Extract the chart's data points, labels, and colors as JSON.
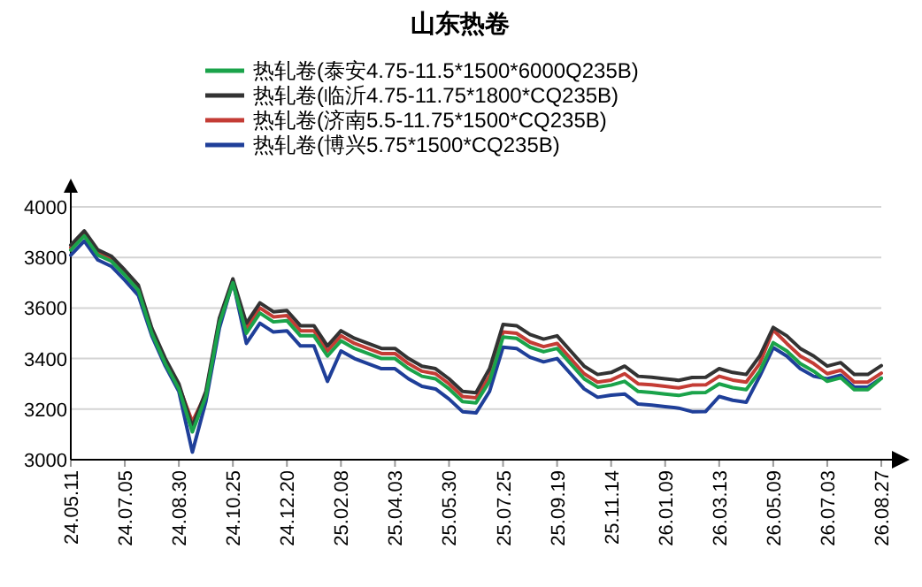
{
  "chart_data": {
    "type": "line",
    "title": "山东热卷",
    "categories": [
      "24.05.11",
      null,
      null,
      null,
      "24.07.05",
      null,
      null,
      null,
      "24.08.30",
      null,
      null,
      null,
      "24.10.25",
      null,
      null,
      null,
      "24.12.20",
      null,
      null,
      null,
      "25.02.08",
      null,
      null,
      null,
      "25.04.03",
      null,
      null,
      null,
      "25.05.30",
      null,
      null,
      null,
      "25.07.25",
      null,
      null,
      null,
      "25.09.19",
      null,
      null,
      null,
      "25.11.14",
      null,
      null,
      null,
      "26.01.09",
      null,
      null,
      null,
      "26.03.13",
      null,
      null,
      null,
      "26.05.09",
      null,
      null,
      null,
      "26.07.03",
      null,
      null,
      null,
      "26.08.27"
    ],
    "series": [
      {
        "name": "热轧卷(泰安4.75-11.5*1500*6000Q235B)",
        "color": "#1aa34a",
        "values": [
          3829,
          3885,
          3810,
          3785,
          3730,
          3670,
          3500,
          3380,
          3280,
          3110,
          3250,
          3540,
          3700,
          3500,
          3580,
          3545,
          3550,
          3490,
          3490,
          3410,
          3470,
          3440,
          3420,
          3400,
          3400,
          3360,
          3330,
          3320,
          3280,
          3230,
          3225,
          3310,
          3485,
          3480,
          3445,
          3427,
          3440,
          3380,
          3320,
          3287,
          3295,
          3310,
          3270,
          3266,
          3260,
          3254,
          3265,
          3266,
          3300,
          3285,
          3277,
          3350,
          3463,
          3430,
          3380,
          3350,
          3310,
          3324,
          3277,
          3277,
          3322
        ]
      },
      {
        "name": "热轧卷(临沂4.75-11.75*1800*CQ235B)",
        "color": "#333333",
        "values": [
          3849,
          3905,
          3830,
          3805,
          3750,
          3690,
          3520,
          3400,
          3300,
          3130,
          3270,
          3560,
          3715,
          3540,
          3620,
          3585,
          3590,
          3530,
          3530,
          3450,
          3510,
          3480,
          3460,
          3440,
          3440,
          3400,
          3370,
          3360,
          3320,
          3270,
          3265,
          3360,
          3535,
          3530,
          3495,
          3477,
          3490,
          3430,
          3370,
          3337,
          3345,
          3370,
          3330,
          3326,
          3320,
          3314,
          3325,
          3326,
          3360,
          3345,
          3337,
          3410,
          3523,
          3490,
          3440,
          3410,
          3370,
          3384,
          3337,
          3337,
          3372
        ]
      },
      {
        "name": "热轧卷(济南5.5-11.75*1500*CQ235B)",
        "color": "#c43c35",
        "values": [
          3839,
          3895,
          3820,
          3795,
          3740,
          3680,
          3510,
          3390,
          3290,
          3150,
          3260,
          3550,
          3705,
          3520,
          3600,
          3565,
          3570,
          3510,
          3510,
          3430,
          3490,
          3460,
          3440,
          3420,
          3420,
          3380,
          3350,
          3340,
          3300,
          3250,
          3245,
          3330,
          3505,
          3500,
          3465,
          3447,
          3460,
          3400,
          3340,
          3307,
          3315,
          3340,
          3300,
          3296,
          3290,
          3284,
          3295,
          3296,
          3330,
          3315,
          3307,
          3380,
          3513,
          3460,
          3410,
          3380,
          3340,
          3354,
          3307,
          3307,
          3342
        ]
      },
      {
        "name": "热轧卷(博兴5.75*1500*CQ235B)",
        "color": "#1f3f99",
        "values": [
          3809,
          3865,
          3790,
          3765,
          3710,
          3650,
          3490,
          3370,
          3270,
          3030,
          3230,
          3520,
          3705,
          3460,
          3540,
          3505,
          3510,
          3450,
          3450,
          3310,
          3430,
          3400,
          3380,
          3360,
          3360,
          3320,
          3290,
          3280,
          3240,
          3190,
          3185,
          3270,
          3445,
          3440,
          3405,
          3387,
          3400,
          3340,
          3280,
          3247,
          3255,
          3260,
          3220,
          3216,
          3210,
          3204,
          3190,
          3191,
          3250,
          3235,
          3227,
          3330,
          3443,
          3410,
          3360,
          3330,
          3320,
          3334,
          3287,
          3287,
          3322
        ]
      }
    ],
    "ylim": [
      3000,
      4000
    ],
    "yticks": [
      3000,
      3200,
      3400,
      3600,
      3800,
      4000
    ],
    "grid": "y",
    "legend": "top"
  }
}
